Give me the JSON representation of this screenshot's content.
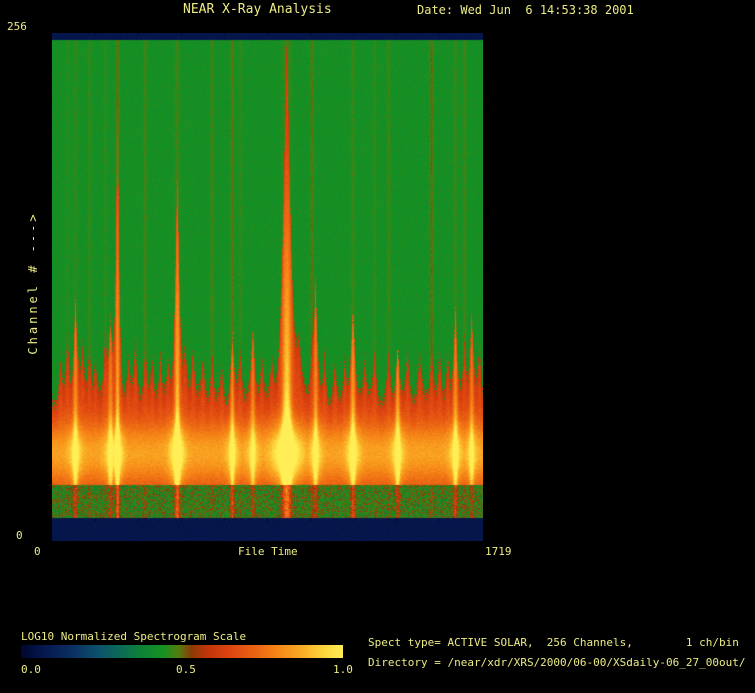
{
  "window": {
    "bg": "#000000",
    "text_color": "#edec85"
  },
  "header": {
    "title": "NEAR X-Ray Analysis",
    "date": "Date: Wed Jun  6 14:53:38 2001"
  },
  "footer": {
    "spect_info": "Spect type= ACTIVE SOLAR,  256 Channels,        1 ch/bin",
    "directory": "Directory = /near/xdr/XRS/2000/06-00/XSdaily-06_27_00out/"
  },
  "chart_data": {
    "type": "heatmap",
    "title": "NEAR X-Ray Analysis",
    "xlabel": "File Time",
    "ylabel": "Channel # --->",
    "x_range": [
      0,
      1719
    ],
    "y_range": [
      0,
      256
    ],
    "x_tick_labels": [
      "0",
      "1719"
    ],
    "y_tick_labels": [
      "0",
      "256"
    ],
    "grid": false,
    "colorbar": {
      "label": "LOG10 Normalized Spectrogram Scale",
      "tick_labels": [
        "0.0",
        "0.5",
        "1.0"
      ],
      "range": [
        0.0,
        1.0
      ],
      "position": "bottom-left"
    },
    "colormap": [
      {
        "v": 0.0,
        "c": "#00062e"
      },
      {
        "v": 0.08,
        "c": "#071a52"
      },
      {
        "v": 0.16,
        "c": "#0a3063"
      },
      {
        "v": 0.24,
        "c": "#0d516b"
      },
      {
        "v": 0.31,
        "c": "#0c6b54"
      },
      {
        "v": 0.38,
        "c": "#0e8334"
      },
      {
        "v": 0.44,
        "c": "#149223"
      },
      {
        "v": 0.49,
        "c": "#567c10"
      },
      {
        "v": 0.53,
        "c": "#8c3a06"
      },
      {
        "v": 0.58,
        "c": "#c23509"
      },
      {
        "v": 0.64,
        "c": "#dc4210"
      },
      {
        "v": 0.72,
        "c": "#ea6013"
      },
      {
        "v": 0.8,
        "c": "#f68717"
      },
      {
        "v": 0.88,
        "c": "#fbb027"
      },
      {
        "v": 0.94,
        "c": "#fdd53c"
      },
      {
        "v": 1.0,
        "c": "#ffee55"
      }
    ],
    "structure": {
      "top_navy_band_frac": 0.014,
      "bottom_navy_band_frac": 0.045,
      "bottom_green_band_frac": 0.065,
      "quiet_background_value": 0.44,
      "red_band_value": 0.62,
      "bright_band_center_frac": 0.826,
      "bright_band_peak_value": 0.85,
      "quiet_boundary_frac": 0.715
    },
    "events": [
      {
        "t": 32,
        "h": 0.12,
        "w": 2
      },
      {
        "t": 60,
        "h": 0.16,
        "w": 2,
        "line": 0.15
      },
      {
        "t": 92,
        "h": 0.27,
        "w": 2.5,
        "line": 0.2,
        "yellow": 0.5
      },
      {
        "t": 120,
        "h": 0.13,
        "w": 2
      },
      {
        "t": 148,
        "h": 0.15,
        "w": 2,
        "line": 0.25
      },
      {
        "t": 172,
        "h": 0.11,
        "w": 2
      },
      {
        "t": 211,
        "h": 0.18,
        "w": 2.5,
        "line": 0.15
      },
      {
        "t": 232,
        "h": 0.21,
        "w": 2.5,
        "yellow": 0.45
      },
      {
        "t": 260,
        "h": 0.82,
        "w": 2.2,
        "line": 0.5,
        "yellow": 0.7
      },
      {
        "t": 303,
        "h": 0.11,
        "w": 2
      },
      {
        "t": 332,
        "h": 0.14,
        "w": 2
      },
      {
        "t": 371,
        "h": 0.15,
        "w": 2,
        "line": 0.35
      },
      {
        "t": 399,
        "h": 0.11,
        "w": 2
      },
      {
        "t": 431,
        "h": 0.14,
        "w": 2.2
      },
      {
        "t": 462,
        "h": 0.11,
        "w": 2
      },
      {
        "t": 499,
        "h": 0.65,
        "w": 2.8,
        "line": 0.3,
        "yellow": 0.8
      },
      {
        "t": 531,
        "h": 0.13,
        "w": 2
      },
      {
        "t": 562,
        "h": 0.15,
        "w": 2
      },
      {
        "t": 602,
        "h": 0.11,
        "w": 2
      },
      {
        "t": 638,
        "h": 0.14,
        "w": 2,
        "line": 0.35
      },
      {
        "t": 677,
        "h": 0.1,
        "w": 2
      },
      {
        "t": 719,
        "h": 0.17,
        "w": 2.2,
        "line": 0.45,
        "yellow": 0.5
      },
      {
        "t": 750,
        "h": 0.13,
        "w": 2,
        "line": 0.2
      },
      {
        "t": 801,
        "h": 0.18,
        "w": 2.4,
        "yellow": 0.4
      },
      {
        "t": 837,
        "h": 0.13,
        "w": 2
      },
      {
        "t": 877,
        "h": 0.11,
        "w": 2
      },
      {
        "t": 937,
        "h": 1.0,
        "w": 5,
        "line": 0.35,
        "yellow": 1.0
      },
      {
        "t": 985,
        "h": 0.13,
        "w": 3
      },
      {
        "t": 1037,
        "h": 0.11,
        "w": 1.8,
        "line": 0.5
      },
      {
        "t": 1052,
        "h": 0.31,
        "w": 2.4,
        "yellow": 0.5
      },
      {
        "t": 1088,
        "h": 0.13,
        "w": 2
      },
      {
        "t": 1129,
        "h": 0.11,
        "w": 2
      },
      {
        "t": 1169,
        "h": 0.13,
        "w": 2
      },
      {
        "t": 1201,
        "h": 0.24,
        "w": 2.6,
        "line": 0.25,
        "yellow": 0.6
      },
      {
        "t": 1248,
        "h": 0.11,
        "w": 2
      },
      {
        "t": 1288,
        "h": 0.14,
        "w": 2,
        "line": 0.2
      },
      {
        "t": 1344,
        "h": 0.13,
        "w": 2,
        "line": 0.3
      },
      {
        "t": 1380,
        "h": 0.16,
        "w": 2.4,
        "yellow": 0.55
      },
      {
        "t": 1420,
        "h": 0.13,
        "w": 2
      },
      {
        "t": 1468,
        "h": 0.11,
        "w": 2
      },
      {
        "t": 1516,
        "h": 0.15,
        "w": 2,
        "line": 0.55
      },
      {
        "t": 1548,
        "h": 0.13,
        "w": 2
      },
      {
        "t": 1580,
        "h": 0.15,
        "w": 2
      },
      {
        "t": 1611,
        "h": 0.25,
        "w": 2.4,
        "line": 0.25,
        "yellow": 0.5
      },
      {
        "t": 1647,
        "h": 0.17,
        "w": 2.2,
        "line": 0.3
      },
      {
        "t": 1676,
        "h": 0.22,
        "w": 2.2,
        "yellow": 0.4
      },
      {
        "t": 1707,
        "h": 0.15,
        "w": 2
      }
    ]
  }
}
